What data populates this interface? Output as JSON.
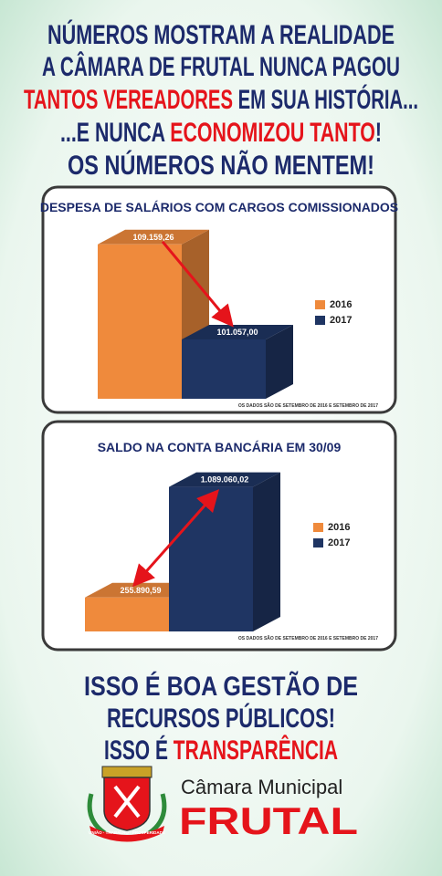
{
  "headline": {
    "line1": "NÚMEROS MOSTRAM A REALIDADE",
    "line2": "A CÂMARA DE FRUTAL NUNCA PAGOU",
    "line3a": "TANTOS VEREADORES",
    "line3b": " EM SUA HISTÓRIA...",
    "line4a": "...E NUNCA ",
    "line4b": "ECONOMIZOU TANTO",
    "line4c": "!",
    "line5": "OS NÚMEROS NÃO MENTEM!"
  },
  "chart_data": [
    {
      "type": "bar3d",
      "title": "DESPESA DE SALÁRIOS COM CARGOS COMISSIONADOS",
      "note": "OS DADOS SÃO DE SETEMBRO DE 2016 E SETEMBRO DE 2017",
      "ylim": [
        96000,
        110000
      ],
      "series": [
        {
          "name": "2016",
          "color": "#ef8a3c",
          "values": [
            109159.26
          ],
          "value_labels": [
            "109.159,26"
          ]
        },
        {
          "name": "2017",
          "color": "#1f3563",
          "values": [
            101057.0
          ],
          "value_labels": [
            "101.057,00"
          ]
        }
      ]
    },
    {
      "type": "bar3d",
      "title": "SALDO NA CONTA BANCÁRIA EM 30/09",
      "note": "OS DADOS SÃO DE SETEMBRO DE 2016 E SETEMBRO DE 2017",
      "ylim": [
        0,
        1100000
      ],
      "series": [
        {
          "name": "2016",
          "color": "#ef8a3c",
          "values": [
            255890.59
          ],
          "value_labels": [
            "255.890,59"
          ]
        },
        {
          "name": "2017",
          "color": "#1f3563",
          "values": [
            1089060.02
          ],
          "value_labels": [
            "1.089.060,02"
          ]
        }
      ]
    }
  ],
  "footer": {
    "line1": "ISSO É BOA GESTÃO DE",
    "line2": "RECURSOS PÚBLICOS!",
    "line3a": "ISSO É ",
    "line3b": "TRANSPARÊNCIA",
    "org": "Câmara Municipal",
    "city": "FRUTAL",
    "motto": "UNIÃO · TRABALHO · PROSPERIDADE"
  }
}
